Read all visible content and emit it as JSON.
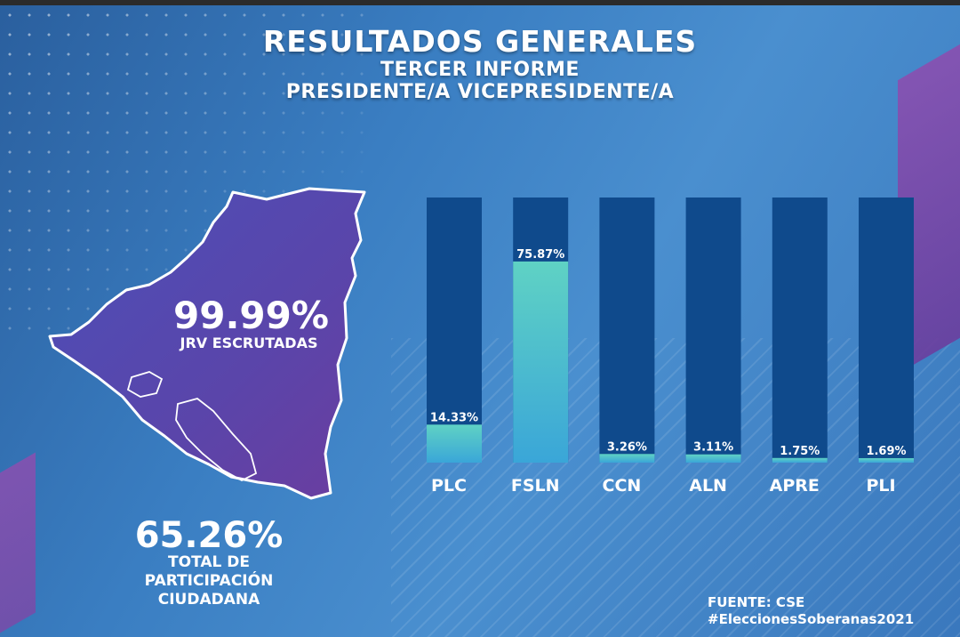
{
  "header": {
    "title": "RESULTADOS GENERALES",
    "subtitle_1": "TERCER INFORME",
    "subtitle_2": "PRESIDENTE/A VICEPRESIDENTE/A"
  },
  "map_stats": {
    "jrv_pct": "99.99%",
    "jrv_label": "JRV ESCRUTADAS",
    "participation_pct": "65.26%",
    "participation_label_1": "TOTAL DE",
    "participation_label_2": "PARTICIPACIÓN",
    "participation_label_3": "CIUDADANA"
  },
  "footer": {
    "source": "FUENTE: CSE",
    "hashtag": "#EleccionesSoberanas2021"
  },
  "colors": {
    "track": "#0f4a8c",
    "fill_top": "#5fd2c4",
    "fill_bottom": "#3aa6d8",
    "map_fill": "#5a4ab0"
  },
  "chart_data": {
    "type": "bar",
    "categories": [
      "PLC",
      "FSLN",
      "CCN",
      "ALN",
      "APRE",
      "PLI"
    ],
    "values": [
      14.33,
      75.87,
      3.26,
      3.11,
      1.75,
      1.69
    ],
    "value_labels": [
      "14.33%",
      "75.87%",
      "3.26%",
      "3.11%",
      "1.75%",
      "1.69%"
    ],
    "ylim": [
      0,
      100
    ]
  }
}
